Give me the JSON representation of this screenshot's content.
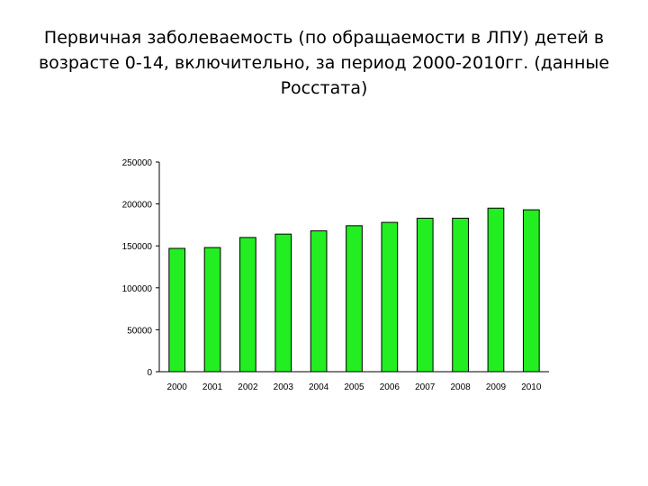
{
  "slide": {
    "title": "Первичная заболеваемость (по обращаемости в ЛПУ) детей в возрасте  0-14, включительно, за период 2000-2010гг. (данные Росстата)"
  },
  "chart_data": {
    "type": "bar",
    "title": "",
    "xlabel": "",
    "ylabel": "",
    "categories": [
      "2000",
      "2001",
      "2002",
      "2003",
      "2004",
      "2005",
      "2006",
      "2007",
      "2008",
      "2009",
      "2010"
    ],
    "values": [
      147000,
      148000,
      160000,
      164000,
      168000,
      174000,
      178000,
      183000,
      183000,
      195000,
      193000
    ],
    "ylim": [
      0,
      250000
    ],
    "yticks": [
      "0",
      "50000",
      "100000",
      "150000",
      "200000",
      "250000"
    ],
    "grid": false,
    "legend": "none",
    "bar_color": "#22ee22",
    "bar_border_color": "#000000"
  }
}
